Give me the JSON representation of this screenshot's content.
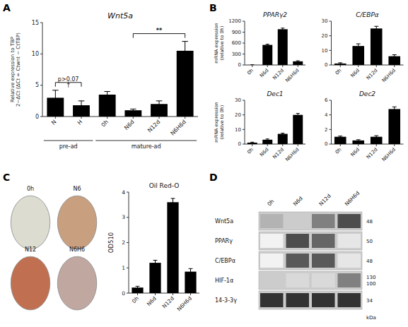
{
  "chart_data": [
    {
      "type": "bar",
      "title": "Wnt5a",
      "ylabel": "Relative expression to TBP\n2−ΔCt (ΔCt = Ctwnt − CtTBP)",
      "categories": [
        "N",
        "H",
        "0h",
        "N6d",
        "N12d",
        "N6H6d"
      ],
      "values": [
        3.0,
        1.8,
        3.5,
        1.0,
        2.0,
        10.5
      ],
      "errors": [
        1.2,
        0.7,
        0.5,
        0.2,
        0.5,
        1.5
      ],
      "color": "#000000",
      "ylim": [
        0,
        15
      ],
      "yticks": [
        0,
        5,
        10,
        15
      ],
      "groups": [
        {
          "label": "pre-ad",
          "span": [
            0,
            1
          ]
        },
        {
          "label": "mature-ad",
          "span": [
            2,
            5
          ]
        }
      ],
      "brackets": [
        {
          "span": [
            0,
            1
          ],
          "label": "p>0.07",
          "sublabel": "†"
        },
        {
          "span": [
            3,
            5
          ],
          "label": "**"
        }
      ],
      "annotations": [
        "A"
      ]
    },
    {
      "type": "bar",
      "title": "PPARγ2",
      "ylabel": "mRNA expression\n(relative to 0h)",
      "categories": [
        "0h",
        "N6d",
        "N12d",
        "N6H6d"
      ],
      "values": [
        1,
        550,
        980,
        100
      ],
      "errors": [
        5,
        20,
        30,
        15
      ],
      "color": "#000000",
      "ylim": [
        0,
        1200
      ],
      "yticks": [
        0,
        300,
        600,
        900,
        1200
      ],
      "annotations": [
        "B"
      ]
    },
    {
      "type": "bar",
      "title": "C/EBPα",
      "categories": [
        "0h",
        "N6d",
        "N12d",
        "N6H6d"
      ],
      "values": [
        1,
        13,
        25,
        6
      ],
      "errors": [
        0.5,
        1.5,
        1.5,
        1.0
      ],
      "color": "#000000",
      "ylim": [
        0,
        30
      ],
      "yticks": [
        0,
        10,
        20,
        30
      ]
    },
    {
      "type": "bar",
      "title": "Dec1",
      "ylabel": "mRNA expression\n(relative to 0h)",
      "categories": [
        "0h",
        "N6d",
        "N12d",
        "N6H6d"
      ],
      "values": [
        1,
        3,
        7,
        20
      ],
      "errors": [
        0.3,
        0.5,
        0.5,
        1.0
      ],
      "color": "#000000",
      "ylim": [
        0,
        30
      ],
      "yticks": [
        0,
        10,
        20,
        30
      ]
    },
    {
      "type": "bar",
      "title": "Dec2",
      "categories": [
        "0h",
        "N6d",
        "N12d",
        "N6H6d"
      ],
      "values": [
        1,
        0.5,
        1.0,
        4.8
      ],
      "errors": [
        0.1,
        0.1,
        0.15,
        0.3
      ],
      "color": "#000000",
      "ylim": [
        0,
        6
      ],
      "yticks": [
        0,
        2,
        4,
        6
      ]
    },
    {
      "type": "photos",
      "categories": [
        "0h",
        "N6",
        "N12",
        "N6H6"
      ],
      "colors": [
        "#dcdcd0",
        "#c8a080",
        "#c07050",
        "#c0a8a0"
      ],
      "annotations": [
        "C"
      ]
    },
    {
      "type": "bar",
      "title": "Oil Red-O",
      "ylabel": "OD510",
      "categories": [
        "0h",
        "N6d",
        "N12d",
        "N6H6d"
      ],
      "values": [
        0.22,
        1.2,
        3.6,
        0.85
      ],
      "errors": [
        0.05,
        0.1,
        0.15,
        0.12
      ],
      "color": "#000000",
      "ylim": [
        0,
        4
      ],
      "yticks": [
        0,
        1,
        2,
        3,
        4
      ]
    },
    {
      "type": "heatmap",
      "x": [
        "0h",
        "N6d",
        "N12d",
        "N6H6d"
      ],
      "y": [
        "Wnt5a",
        "PPARγ",
        "C/EBPα",
        "HIF-1α",
        "14-3-3γ"
      ],
      "right_labels": [
        "48",
        "50",
        "48",
        "130\n100",
        "34"
      ],
      "cells": [
        [
          0.3,
          0.2,
          0.5,
          0.7
        ],
        [
          0.05,
          0.7,
          0.6,
          0.1
        ],
        [
          0.05,
          0.65,
          0.65,
          0.1
        ],
        [
          0.2,
          0.15,
          0.15,
          0.5
        ],
        [
          0.8,
          0.8,
          0.8,
          0.8
        ]
      ],
      "annotations": [
        "D",
        "kDa"
      ]
    }
  ]
}
